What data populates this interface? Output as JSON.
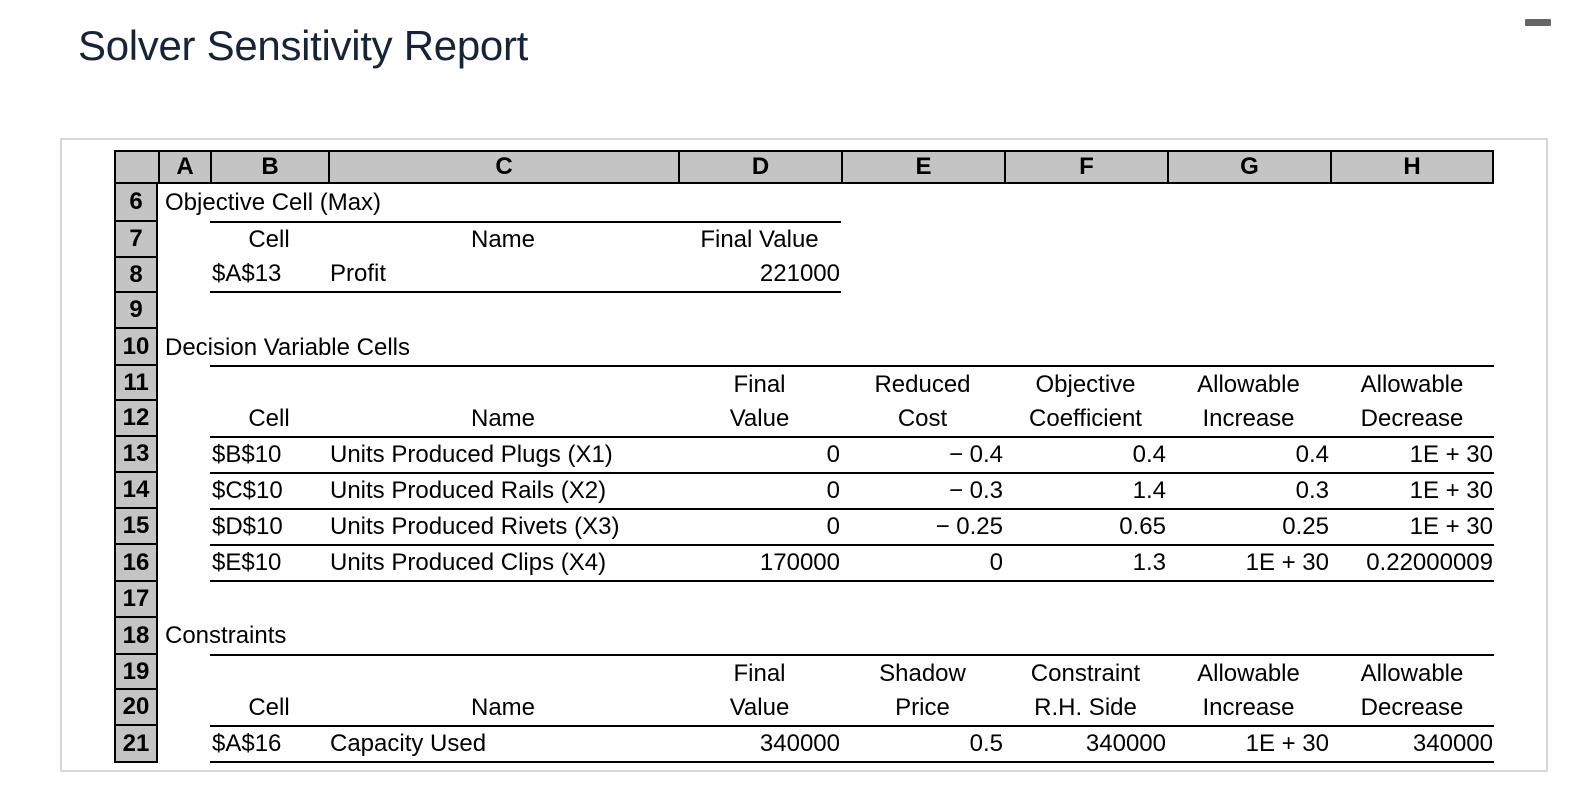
{
  "title": "Solver Sensitivity Report",
  "columns": [
    "A",
    "B",
    "C",
    "D",
    "E",
    "F",
    "G",
    "H"
  ],
  "rows": [
    "6",
    "7",
    "8",
    "9",
    "10",
    "11",
    "12",
    "13",
    "14",
    "15",
    "16",
    "17",
    "18",
    "19",
    "20",
    "21"
  ],
  "objective": {
    "section": "Objective Cell (Max)",
    "headers": {
      "cell": "Cell",
      "name": "Name",
      "final_value": "Final Value"
    },
    "row": {
      "cell": "$A$13",
      "name": "Profit",
      "final_value": "221000"
    }
  },
  "decision": {
    "section": "Decision Variable Cells",
    "headers_top": {
      "final": "Final",
      "reduced": "Reduced",
      "objective": "Objective",
      "allow_inc": "Allowable",
      "allow_dec": "Allowable"
    },
    "headers_bottom": {
      "cell": "Cell",
      "name": "Name",
      "value": "Value",
      "cost": "Cost",
      "coefficient": "Coefficient",
      "increase": "Increase",
      "decrease": "Decrease"
    },
    "rows": [
      {
        "cell": "$B$10",
        "name": "Units Produced Plugs (X1)",
        "final": "0",
        "reduced": "− 0.4",
        "coef": "0.4",
        "inc": "0.4",
        "dec": "1E + 30"
      },
      {
        "cell": "$C$10",
        "name": "Units Produced Rails (X2)",
        "final": "0",
        "reduced": "− 0.3",
        "coef": "1.4",
        "inc": "0.3",
        "dec": "1E + 30"
      },
      {
        "cell": "$D$10",
        "name": "Units Produced Rivets (X3)",
        "final": "0",
        "reduced": "− 0.25",
        "coef": "0.65",
        "inc": "0.25",
        "dec": "1E + 30"
      },
      {
        "cell": "$E$10",
        "name": "Units Produced Clips (X4)",
        "final": "170000",
        "reduced": "0",
        "coef": "1.3",
        "inc": "1E + 30",
        "dec": "0.22000009"
      }
    ]
  },
  "constraints": {
    "section": "Constraints",
    "headers_top": {
      "final": "Final",
      "shadow": "Shadow",
      "constraint": "Constraint",
      "allow_inc": "Allowable",
      "allow_dec": "Allowable"
    },
    "headers_bottom": {
      "cell": "Cell",
      "name": "Name",
      "value": "Value",
      "price": "Price",
      "rhs": "R.H. Side",
      "increase": "Increase",
      "decrease": "Decrease"
    },
    "rows": [
      {
        "cell": "$A$16",
        "name": "Capacity Used",
        "final": "340000",
        "shadow": "0.5",
        "rhs": "340000",
        "inc": "1E + 30",
        "dec": "340000"
      }
    ]
  }
}
